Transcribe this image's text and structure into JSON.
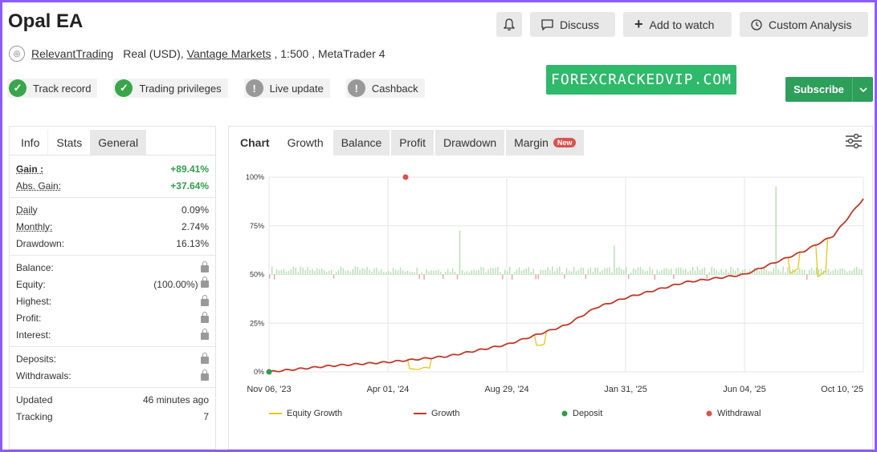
{
  "title": "Opal EA",
  "top_buttons": {
    "discuss": "Discuss",
    "watch": "Add to watch",
    "analysis": "Custom Analysis"
  },
  "account": {
    "user": "RelevantTrading",
    "type": "Real (USD),",
    "broker": "Vantage Markets",
    "rest": ", 1:500 , MetaTrader 4"
  },
  "badges": [
    {
      "label": "Track record",
      "icon": "check-icon"
    },
    {
      "label": "Trading privileges",
      "icon": "check-icon"
    },
    {
      "label": "Live update",
      "icon": "exclamation-icon"
    },
    {
      "label": "Cashback",
      "icon": "exclamation-icon"
    }
  ],
  "watermark": "FOREXCRACKEDVIP.COM",
  "subscribe": "Subscribe",
  "stats_tabs": [
    "Info",
    "Stats",
    "General"
  ],
  "stats": {
    "gain": {
      "k": "Gain :",
      "v": "+89.41%"
    },
    "abs_gain": {
      "k": "Abs. Gain:",
      "v": "+37.64%"
    },
    "daily": {
      "k": "Daily",
      "v": "0.09%"
    },
    "monthly": {
      "k": "Monthly:",
      "v": "2.74%"
    },
    "drawdown": {
      "k": "Drawdown:",
      "v": "16.13%"
    },
    "balance": {
      "k": "Balance:"
    },
    "equity": {
      "k": "Equity:",
      "v": "(100.00%)"
    },
    "highest": {
      "k": "Highest:"
    },
    "profit": {
      "k": "Profit:"
    },
    "interest": {
      "k": "Interest:"
    },
    "deposits": {
      "k": "Deposits:"
    },
    "withdrawals": {
      "k": "Withdrawals:"
    },
    "updated": {
      "k": "Updated",
      "v": "46 minutes ago"
    },
    "tracking": {
      "k": "Tracking",
      "v": "7"
    }
  },
  "chart_tabs": {
    "chart": "Chart",
    "growth": "Growth",
    "balance": "Balance",
    "profit": "Profit",
    "drawdown": "Drawdown",
    "margin": "Margin",
    "new": "New"
  },
  "chart_data": {
    "type": "line",
    "x_ticks": [
      "Nov 06, '23",
      "Apr 01, '24",
      "Aug 29, '24",
      "Jan 31, '25",
      "Jun 04, '25",
      "Oct 10, '25"
    ],
    "y_ticks": [
      "0%",
      "25%",
      "50%",
      "75%",
      "100%"
    ],
    "ylim": [
      0,
      100
    ],
    "legend": [
      "Equity Growth",
      "Growth",
      "Deposit",
      "Withdrawal"
    ],
    "colors": {
      "growth": "#c0392b",
      "equity": "#e6c619",
      "deposit": "#2e9e4b",
      "withdrawal": "#d9534f",
      "bars_pos": "#b5dfb0",
      "bars_neg": "#e8a0a0"
    },
    "growth_points": [
      [
        0,
        0
      ],
      [
        0.1,
        3
      ],
      [
        0.2,
        5
      ],
      [
        0.3,
        8
      ],
      [
        0.4,
        14
      ],
      [
        0.5,
        24
      ],
      [
        0.55,
        33
      ],
      [
        0.6,
        38
      ],
      [
        0.7,
        46
      ],
      [
        0.8,
        50
      ],
      [
        0.9,
        62
      ],
      [
        0.95,
        70
      ],
      [
        1.0,
        89
      ]
    ],
    "deposit_point": [
      0,
      0
    ],
    "withdrawal_point": [
      0.25,
      100
    ]
  }
}
